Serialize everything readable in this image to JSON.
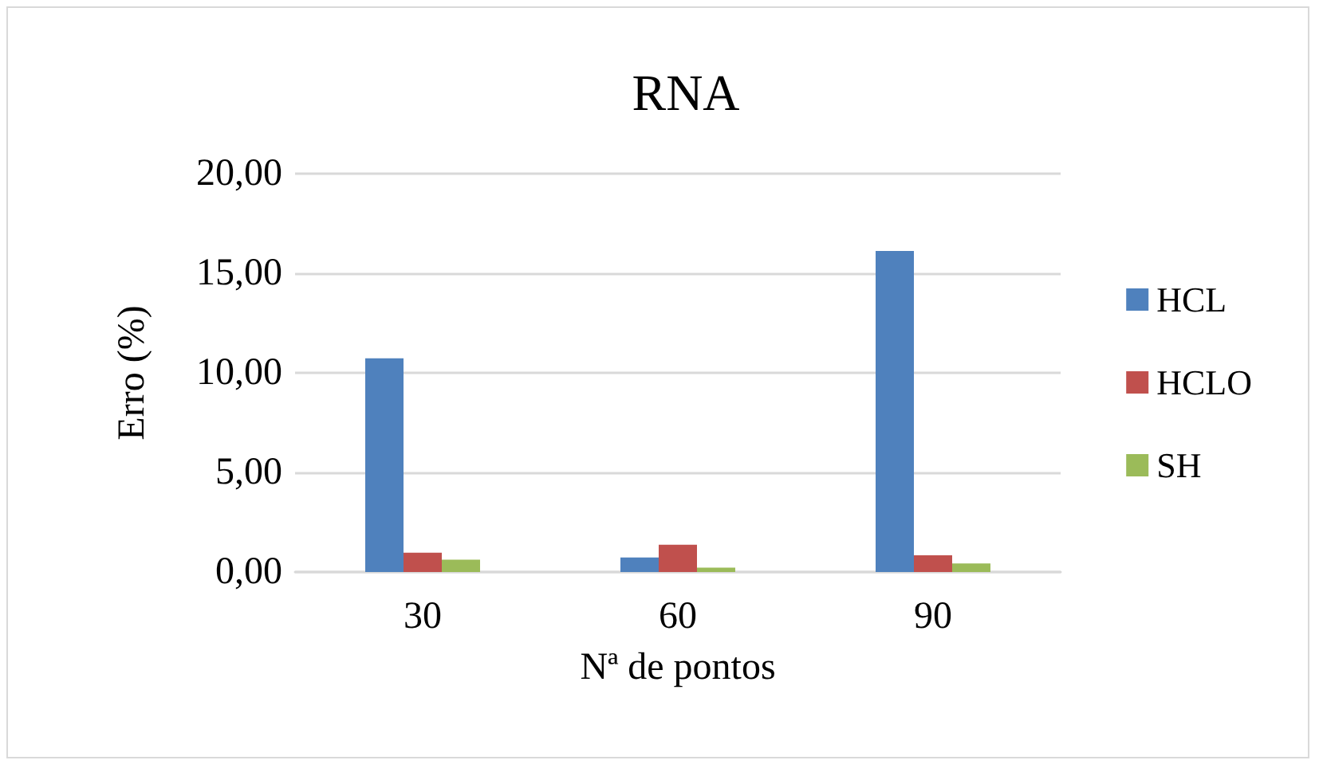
{
  "chart_data": {
    "type": "bar",
    "title": "RNA",
    "xlabel": "Nª de pontos",
    "ylabel": "Erro (%)",
    "categories": [
      "30",
      "60",
      "90"
    ],
    "series": [
      {
        "name": "HCL",
        "color": "#4f81bd",
        "values": [
          10.73,
          0.73,
          16.12
        ]
      },
      {
        "name": "HCLO",
        "color": "#c0504d",
        "values": [
          0.97,
          1.37,
          0.84
        ]
      },
      {
        "name": "SH",
        "color": "#9bbb59",
        "values": [
          0.62,
          0.22,
          0.43
        ]
      }
    ],
    "ylim": [
      0,
      20
    ],
    "yticks": [
      {
        "value": 0,
        "label": "0,00"
      },
      {
        "value": 5,
        "label": "5,00"
      },
      {
        "value": 10,
        "label": "10,00"
      },
      {
        "value": 15,
        "label": "15,00"
      },
      {
        "value": 20,
        "label": "20,00"
      }
    ],
    "grid": "y",
    "legend": "right"
  }
}
